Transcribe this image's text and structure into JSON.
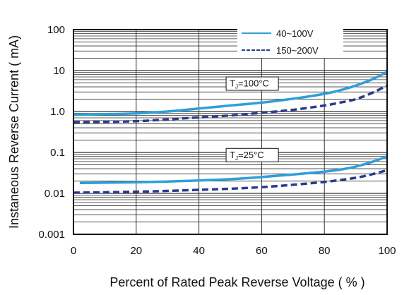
{
  "chart_data": {
    "type": "line",
    "xlabel": "Percent of Rated Peak Reverse Voltage ( % )",
    "ylabel": "Instaneous Reverse Current ( mA)",
    "xlim": [
      0,
      100
    ],
    "ylim": [
      0.001,
      100
    ],
    "yscale": "log",
    "grid": true,
    "legend_position": "top-right",
    "x_ticks": [
      "0",
      "20",
      "40",
      "60",
      "80",
      "100"
    ],
    "y_ticks": [
      "100",
      "10",
      "1.0",
      "0.1",
      "0.01",
      "0.001"
    ],
    "legend": [
      {
        "label": "40~100V",
        "style": "solid",
        "color": "#2e9fd9"
      },
      {
        "label": "150~200V",
        "style": "dashed",
        "color": "#2b3a8f"
      }
    ],
    "annotations": [
      {
        "main": "T",
        "sub": "J",
        "rest": "=100°C",
        "x": 57,
        "y": 4.8
      },
      {
        "main": "T",
        "sub": "J",
        "rest": "=25°C",
        "x": 57,
        "y": 0.086
      }
    ],
    "series": [
      {
        "condition": "T_J=100°C",
        "style": "solid",
        "color": "#2e9fd9",
        "x": [
          0,
          10,
          20,
          30,
          40,
          50,
          60,
          70,
          80,
          85,
          90,
          95,
          100
        ],
        "y": [
          0.83,
          0.86,
          0.9,
          1.0,
          1.18,
          1.4,
          1.65,
          2.05,
          2.7,
          3.3,
          4.3,
          6.0,
          9.2
        ]
      },
      {
        "condition": "T_J=100°C",
        "style": "dashed",
        "color": "#2b3a8f",
        "x": [
          0,
          10,
          20,
          30,
          40,
          50,
          60,
          70,
          80,
          85,
          90,
          95,
          100
        ],
        "y": [
          0.55,
          0.56,
          0.58,
          0.64,
          0.72,
          0.8,
          0.93,
          1.1,
          1.4,
          1.65,
          2.0,
          2.8,
          4.3
        ]
      },
      {
        "condition": "T_J=25°C",
        "style": "solid",
        "color": "#2e9fd9",
        "x": [
          2,
          10,
          20,
          30,
          40,
          50,
          60,
          70,
          80,
          85,
          90,
          95,
          100
        ],
        "y": [
          0.018,
          0.0182,
          0.0187,
          0.0195,
          0.0207,
          0.0222,
          0.025,
          0.029,
          0.034,
          0.038,
          0.045,
          0.058,
          0.08
        ]
      },
      {
        "condition": "T_J=25°C",
        "style": "dashed",
        "color": "#2b3a8f",
        "x": [
          0,
          10,
          20,
          30,
          40,
          50,
          60,
          70,
          80,
          85,
          90,
          95,
          100
        ],
        "y": [
          0.0104,
          0.0106,
          0.011,
          0.0115,
          0.0122,
          0.013,
          0.0142,
          0.0162,
          0.019,
          0.0212,
          0.024,
          0.029,
          0.037
        ]
      }
    ]
  }
}
